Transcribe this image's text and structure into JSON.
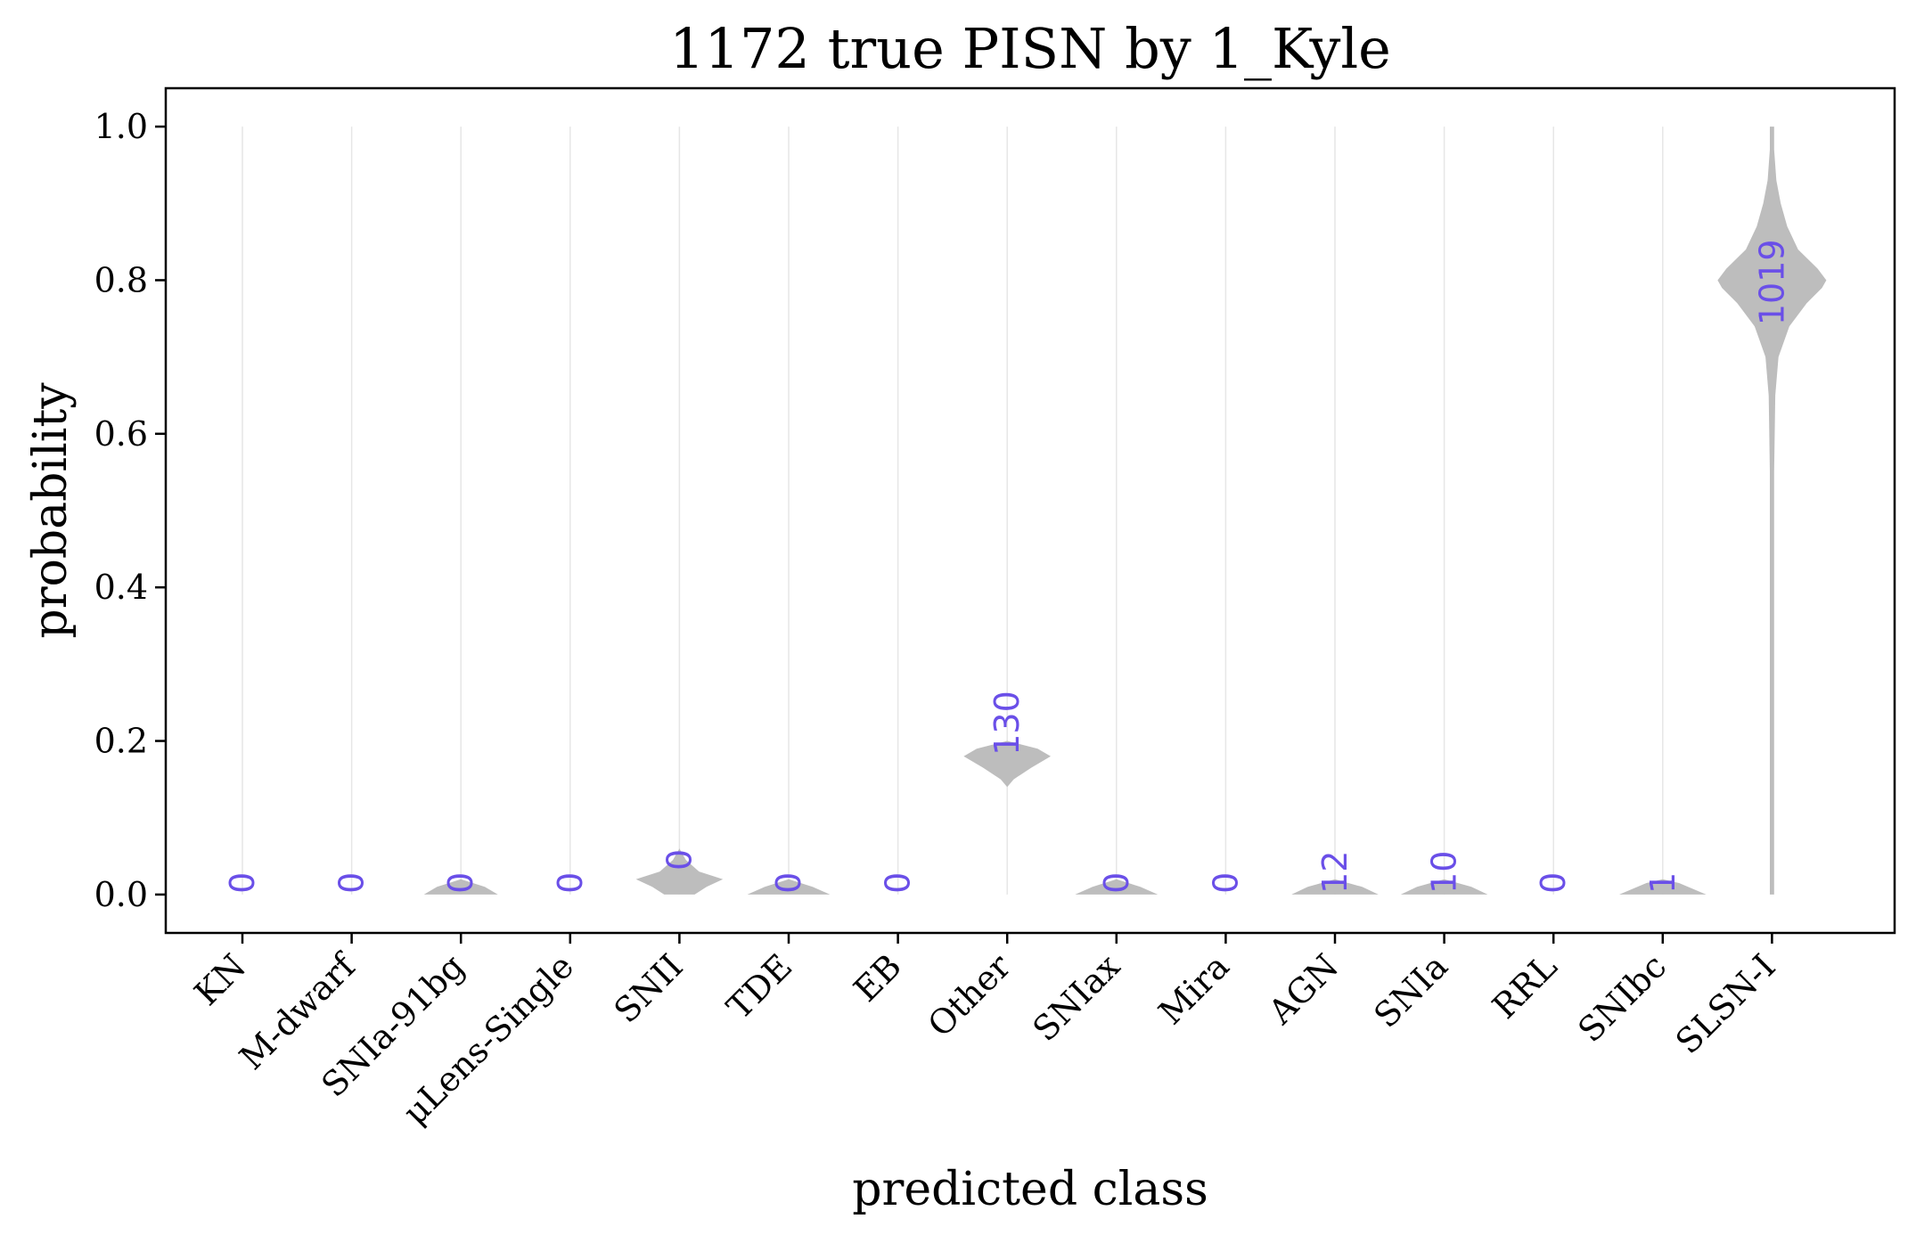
{
  "chart_data": {
    "type": "violin",
    "title": "1172 true PISN by 1_Kyle",
    "xlabel": "predicted class",
    "ylabel": "probability",
    "ylim": [
      -0.05,
      1.05
    ],
    "yticks": [
      "0.0",
      "0.2",
      "0.4",
      "0.6",
      "0.8",
      "1.0"
    ],
    "grid": "vertical lines at each class",
    "count_color": "#6a4fe8",
    "violin_color": "#bdbdbd",
    "classes": [
      {
        "label": "KN",
        "count": "0",
        "count_y": 0.0,
        "violin": []
      },
      {
        "label": "M-dwarf",
        "count": "0",
        "count_y": 0.0,
        "violin": []
      },
      {
        "label": "SNIa-91bg",
        "count": "0",
        "count_y": 0.0,
        "violin": [
          [
            0.0,
            0.34
          ],
          [
            0.01,
            0.22
          ],
          [
            0.02,
            0.0
          ]
        ]
      },
      {
        "label": "μLens-Single",
        "count": "0",
        "count_y": 0.0,
        "violin": []
      },
      {
        "label": "SNII",
        "count": "0",
        "count_y": 0.03,
        "violin": [
          [
            0.0,
            0.14
          ],
          [
            0.01,
            0.25
          ],
          [
            0.02,
            0.4
          ],
          [
            0.03,
            0.18
          ],
          [
            0.045,
            0.06
          ],
          [
            0.06,
            0.0
          ]
        ]
      },
      {
        "label": "TDE",
        "count": "0",
        "count_y": 0.0,
        "violin": [
          [
            0.0,
            0.38
          ],
          [
            0.01,
            0.22
          ],
          [
            0.02,
            0.0
          ]
        ]
      },
      {
        "label": "EB",
        "count": "0",
        "count_y": 0.0,
        "violin": []
      },
      {
        "label": "Other",
        "count": "130",
        "count_y": 0.18,
        "violin": [
          [
            0.14,
            0.0
          ],
          [
            0.15,
            0.06
          ],
          [
            0.165,
            0.22
          ],
          [
            0.18,
            0.4
          ],
          [
            0.19,
            0.28
          ],
          [
            0.2,
            0.0
          ]
        ]
      },
      {
        "label": "SNIax",
        "count": "0",
        "count_y": 0.0,
        "violin": [
          [
            0.0,
            0.38
          ],
          [
            0.01,
            0.22
          ],
          [
            0.02,
            0.0
          ]
        ]
      },
      {
        "label": "Mira",
        "count": "0",
        "count_y": 0.0,
        "violin": []
      },
      {
        "label": "AGN",
        "count": "12",
        "count_y": 0.0,
        "violin": [
          [
            0.0,
            0.4
          ],
          [
            0.01,
            0.25
          ],
          [
            0.02,
            0.0
          ]
        ]
      },
      {
        "label": "SNIa",
        "count": "10",
        "count_y": 0.0,
        "violin": [
          [
            0.0,
            0.4
          ],
          [
            0.01,
            0.25
          ],
          [
            0.02,
            0.0
          ]
        ]
      },
      {
        "label": "RRL",
        "count": "0",
        "count_y": 0.0,
        "violin": []
      },
      {
        "label": "SNIbc",
        "count": "1",
        "count_y": 0.0,
        "violin": [
          [
            0.0,
            0.4
          ],
          [
            0.015,
            0.15
          ],
          [
            0.02,
            0.0
          ]
        ]
      },
      {
        "label": "SLSN-I",
        "count": "1019",
        "count_y": 0.74,
        "violin": [
          [
            0.0,
            0.02
          ],
          [
            0.55,
            0.02
          ],
          [
            0.65,
            0.03
          ],
          [
            0.7,
            0.06
          ],
          [
            0.74,
            0.16
          ],
          [
            0.77,
            0.32
          ],
          [
            0.79,
            0.46
          ],
          [
            0.8,
            0.5
          ],
          [
            0.815,
            0.42
          ],
          [
            0.84,
            0.24
          ],
          [
            0.87,
            0.14
          ],
          [
            0.9,
            0.08
          ],
          [
            0.93,
            0.04
          ],
          [
            0.97,
            0.02
          ],
          [
            1.0,
            0.02
          ]
        ]
      }
    ]
  }
}
